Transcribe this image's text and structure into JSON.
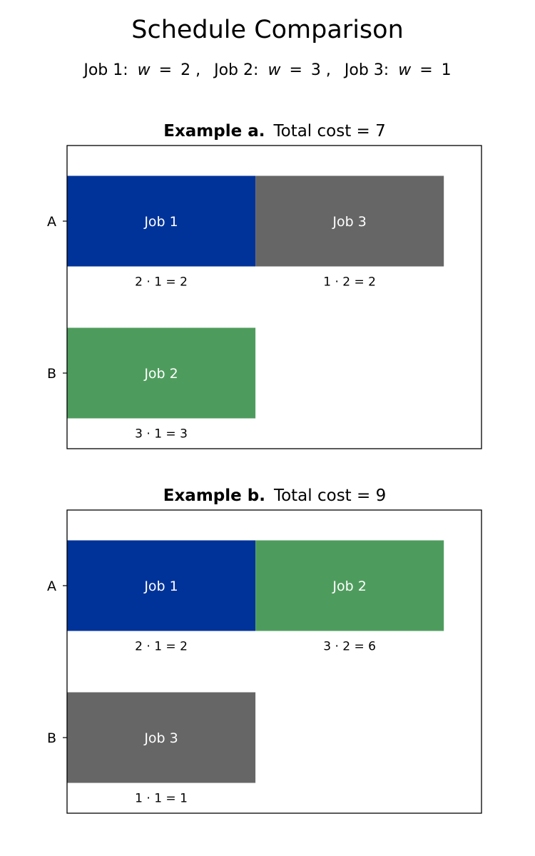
{
  "title": "Schedule Comparison",
  "subtitle": {
    "jobs": [
      {
        "label": "Job 1:",
        "w": "2"
      },
      {
        "label": "Job 2:",
        "w": "3"
      },
      {
        "label": "Job 3:",
        "w": "1"
      }
    ],
    "var": "w"
  },
  "colors": {
    "Job 1": "#003399",
    "Job 2": "#4e9c5d",
    "Job 3": "#666666"
  },
  "chart_data": [
    {
      "type": "gantt",
      "title_bold": "Example a.",
      "title_rest": "Total cost = 7",
      "machines": [
        "A",
        "B"
      ],
      "xlim": [
        0,
        2.2
      ],
      "tasks": [
        {
          "machine": "A",
          "job": "Job 1",
          "start": 0,
          "end": 1,
          "cost_label": "2 · 1 = 2"
        },
        {
          "machine": "A",
          "job": "Job 3",
          "start": 1,
          "end": 2,
          "cost_label": "1 · 2 = 2"
        },
        {
          "machine": "B",
          "job": "Job 2",
          "start": 0,
          "end": 1,
          "cost_label": "3 · 1 = 3"
        }
      ]
    },
    {
      "type": "gantt",
      "title_bold": "Example b.",
      "title_rest": "Total cost = 9",
      "machines": [
        "A",
        "B"
      ],
      "xlim": [
        0,
        2.2
      ],
      "tasks": [
        {
          "machine": "A",
          "job": "Job 1",
          "start": 0,
          "end": 1,
          "cost_label": "2 · 1 = 2"
        },
        {
          "machine": "A",
          "job": "Job 2",
          "start": 1,
          "end": 2,
          "cost_label": "3 · 2 = 6"
        },
        {
          "machine": "B",
          "job": "Job 3",
          "start": 0,
          "end": 1,
          "cost_label": "1 · 1 = 1"
        }
      ]
    }
  ]
}
